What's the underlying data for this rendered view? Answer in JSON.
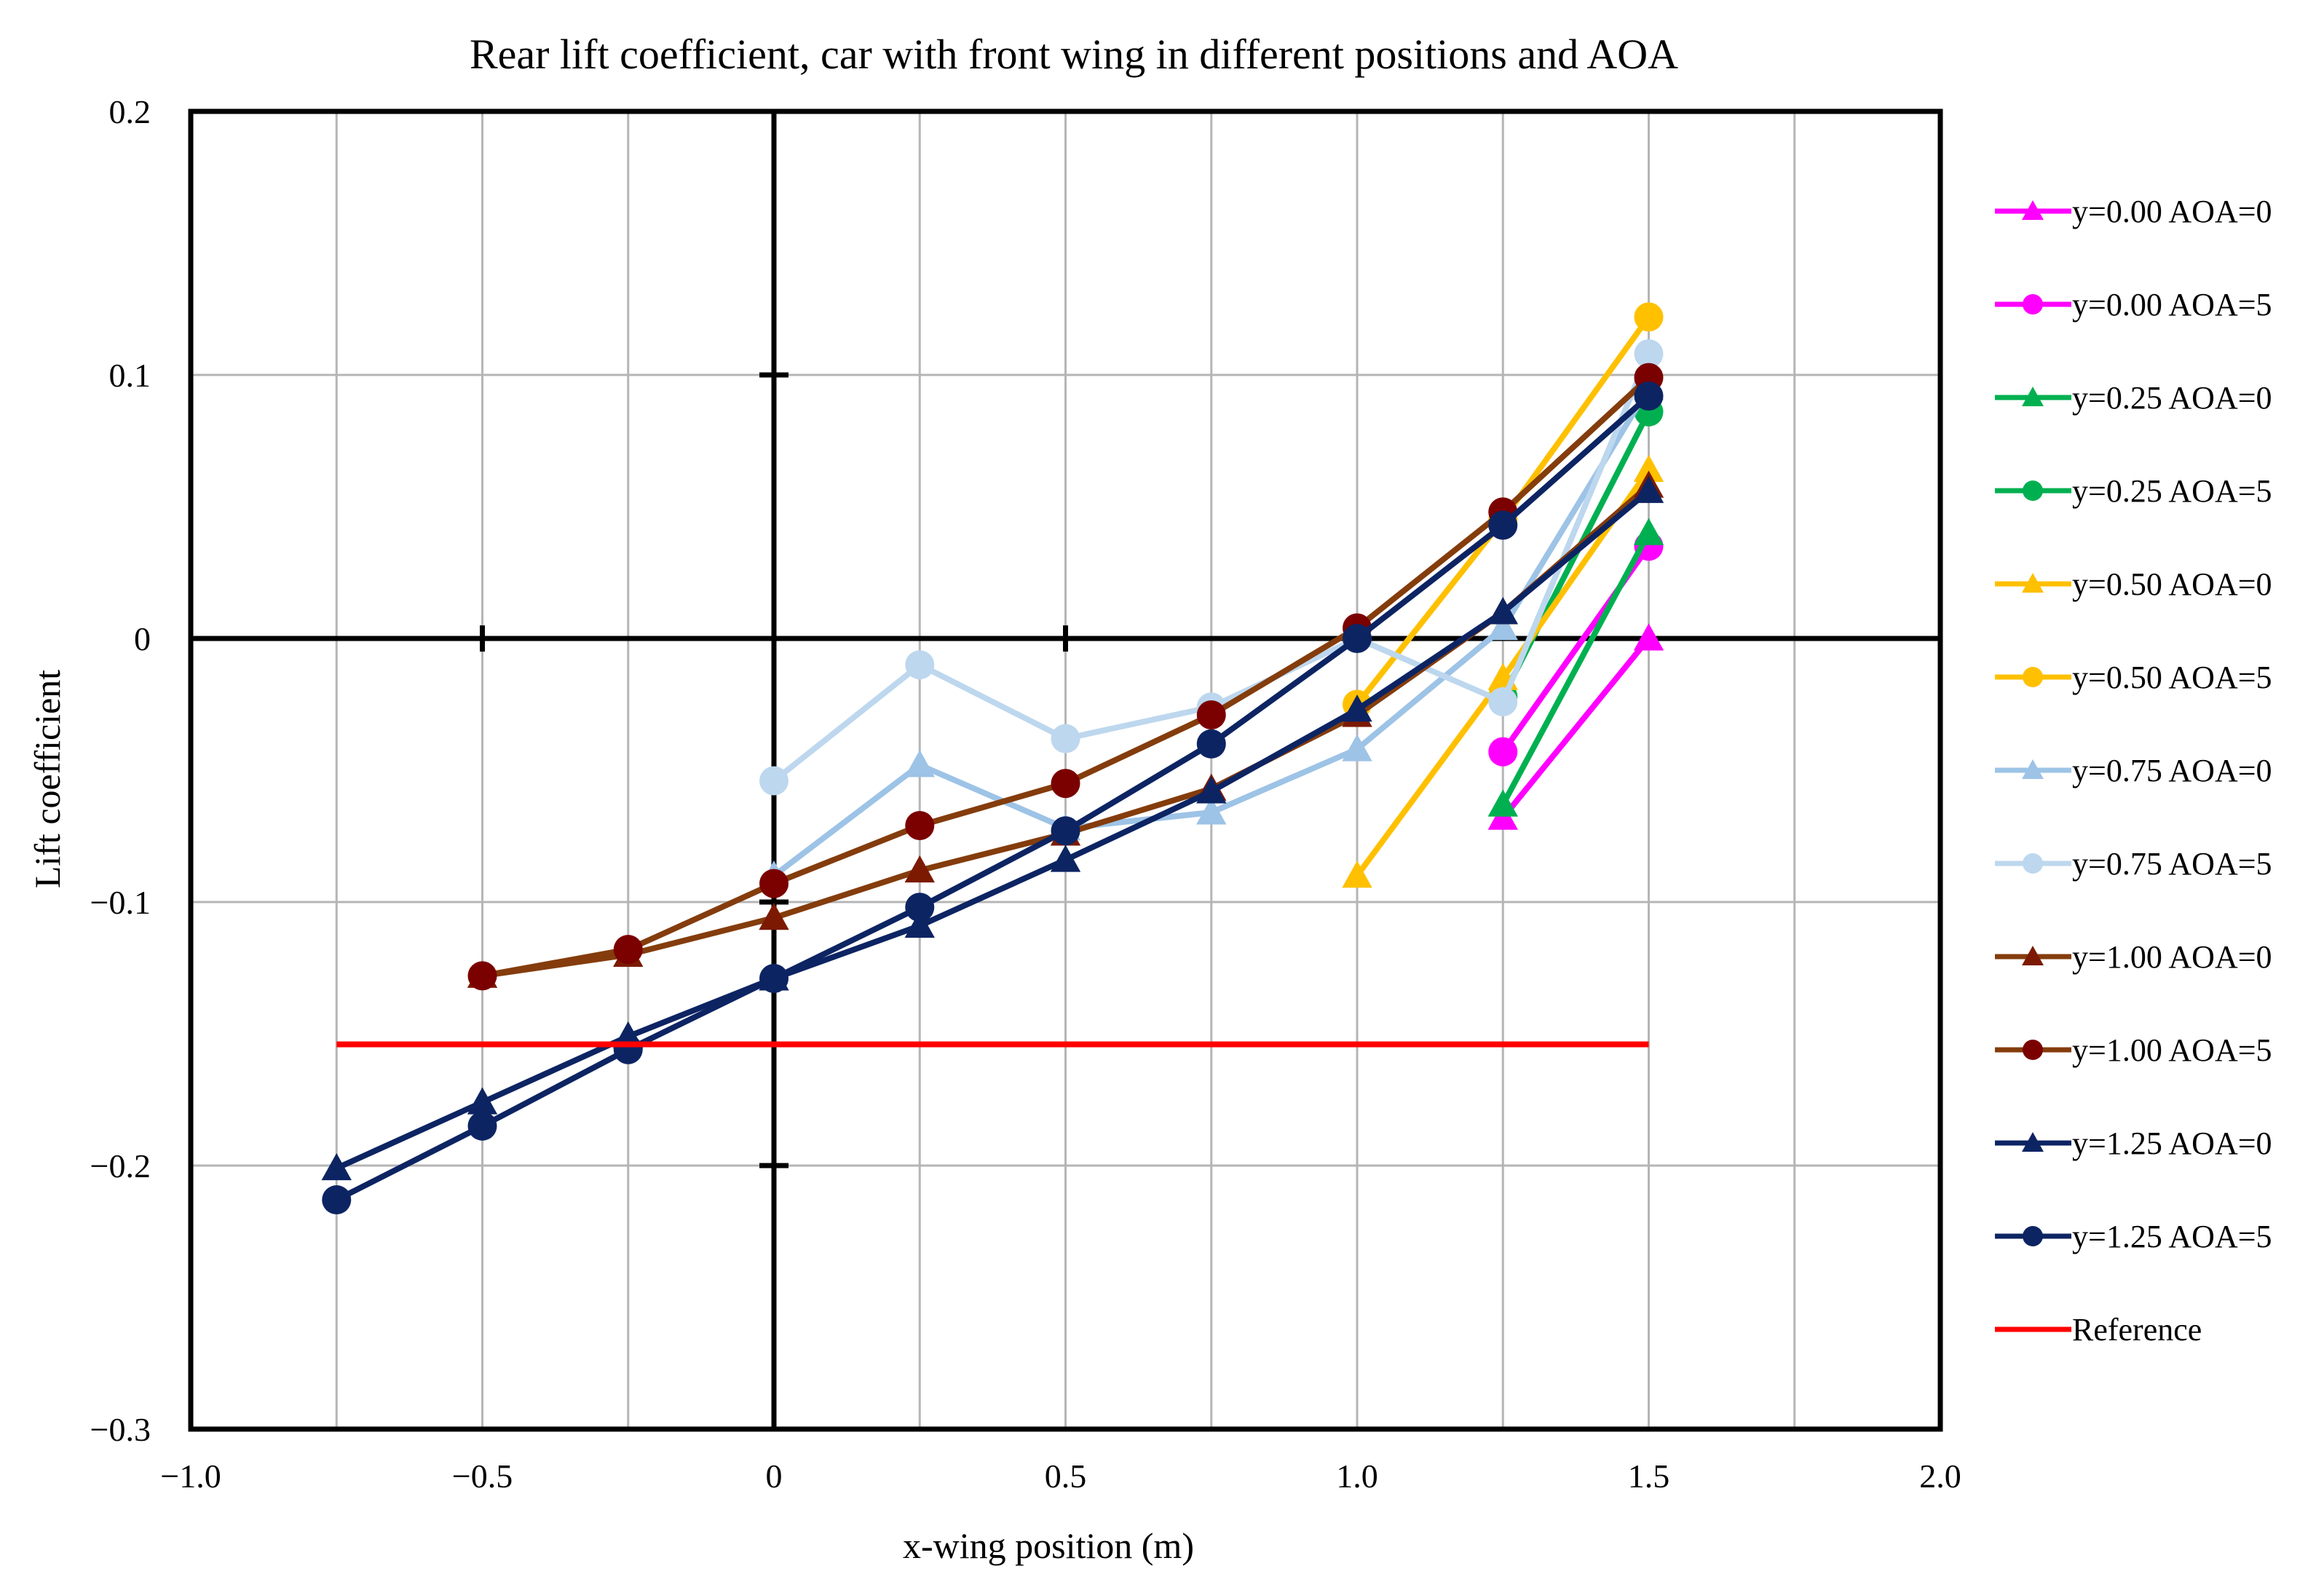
{
  "chart_data": {
    "type": "line",
    "title": "Rear lift coefficient, car with front wing in different positions and AOA",
    "xlabel": "x-wing position (m)",
    "ylabel": "Lift coefficient",
    "xlim": [
      -1.0,
      2.0
    ],
    "ylim": [
      -0.3,
      0.2
    ],
    "x_ticks": [
      -1.0,
      -0.5,
      0,
      0.5,
      1.0,
      1.5,
      2.0
    ],
    "x_tick_labels": [
      "−1.0",
      "−0.5",
      "0",
      "0.5",
      "1.0",
      "1.5",
      "2.0"
    ],
    "y_ticks": [
      0.2,
      0.1,
      0,
      -0.1,
      -0.2,
      -0.3
    ],
    "y_tick_labels": [
      "0.2",
      "0.1",
      "0",
      "−0.1",
      "−0.2",
      "−0.3"
    ],
    "grid": true,
    "legend_position": "right",
    "series": [
      {
        "name": "y=0.00 AOA=0",
        "color": "#ff00ff",
        "marker": "triangle",
        "points": [
          [
            1.25,
            -0.068
          ],
          [
            1.5,
            0.0
          ]
        ]
      },
      {
        "name": "y=0.00 AOA=5",
        "color": "#ff00ff",
        "marker": "circle",
        "points": [
          [
            1.25,
            -0.043
          ],
          [
            1.5,
            0.035
          ]
        ]
      },
      {
        "name": "y=0.25 AOA=0",
        "color": "#00b050",
        "marker": "triangle",
        "points": [
          [
            1.25,
            -0.063
          ],
          [
            1.5,
            0.04
          ]
        ]
      },
      {
        "name": "y=0.25 AOA=5",
        "color": "#00b050",
        "marker": "circle",
        "points": [
          [
            1.25,
            -0.022
          ],
          [
            1.5,
            0.086
          ]
        ]
      },
      {
        "name": "y=0.50 AOA=0",
        "color": "#ffc000",
        "marker": "triangle",
        "points": [
          [
            1.0,
            -0.09
          ],
          [
            1.25,
            -0.015
          ],
          [
            1.5,
            0.064
          ]
        ]
      },
      {
        "name": "y=0.50 AOA=5",
        "color": "#ffc000",
        "marker": "circle",
        "points": [
          [
            1.0,
            -0.025
          ],
          [
            1.25,
            0.045
          ],
          [
            1.5,
            0.122
          ]
        ]
      },
      {
        "name": "y=0.75 AOA=0",
        "color": "#9dc3e6",
        "marker": "triangle",
        "points": [
          [
            0.0,
            -0.09
          ],
          [
            0.25,
            -0.048
          ],
          [
            0.5,
            -0.072
          ],
          [
            0.75,
            -0.066
          ],
          [
            1.0,
            -0.042
          ],
          [
            1.25,
            0.004
          ],
          [
            1.5,
            0.095
          ]
        ]
      },
      {
        "name": "y=0.75 AOA=5",
        "color": "#bdd7ee",
        "marker": "circle",
        "points": [
          [
            0.0,
            -0.054
          ],
          [
            0.25,
            -0.01
          ],
          [
            0.5,
            -0.038
          ],
          [
            0.75,
            -0.026
          ],
          [
            1.0,
            0.0
          ],
          [
            1.25,
            -0.024
          ],
          [
            1.5,
            0.108
          ]
        ]
      },
      {
        "name": "y=1.00 AOA=0",
        "color": "#7b1a00",
        "line_color": "#843c0c",
        "marker": "triangle",
        "points": [
          [
            -0.5,
            -0.128
          ],
          [
            -0.25,
            -0.12
          ],
          [
            0.0,
            -0.106
          ],
          [
            0.25,
            -0.088
          ],
          [
            0.5,
            -0.074
          ],
          [
            0.75,
            -0.057
          ],
          [
            1.0,
            -0.029
          ],
          [
            1.25,
            0.01
          ],
          [
            1.5,
            0.058
          ]
        ]
      },
      {
        "name": "y=1.00 AOA=5",
        "color": "#7b0000",
        "line_color": "#843c0c",
        "marker": "circle",
        "points": [
          [
            -0.5,
            -0.128
          ],
          [
            -0.25,
            -0.118
          ],
          [
            0.0,
            -0.093
          ],
          [
            0.25,
            -0.071
          ],
          [
            0.5,
            -0.055
          ],
          [
            0.75,
            -0.029
          ],
          [
            1.0,
            0.004
          ],
          [
            1.25,
            0.048
          ],
          [
            1.5,
            0.099
          ]
        ]
      },
      {
        "name": "y=1.25 AOA=0",
        "color": "#0d2463",
        "marker": "triangle",
        "points": [
          [
            -0.75,
            -0.201
          ],
          [
            -0.5,
            -0.176
          ],
          [
            -0.25,
            -0.151
          ],
          [
            0.0,
            -0.129
          ],
          [
            0.25,
            -0.109
          ],
          [
            0.5,
            -0.084
          ],
          [
            0.75,
            -0.058
          ],
          [
            1.0,
            -0.027
          ],
          [
            1.25,
            0.01
          ],
          [
            1.5,
            0.056
          ]
        ]
      },
      {
        "name": "y=1.25 AOA=5",
        "color": "#0d2463",
        "marker": "circle",
        "points": [
          [
            -0.75,
            -0.213
          ],
          [
            -0.5,
            -0.185
          ],
          [
            -0.25,
            -0.156
          ],
          [
            0.0,
            -0.129
          ],
          [
            0.25,
            -0.102
          ],
          [
            0.5,
            -0.073
          ],
          [
            0.75,
            -0.04
          ],
          [
            1.0,
            0.0
          ],
          [
            1.25,
            0.043
          ],
          [
            1.5,
            0.092
          ]
        ]
      },
      {
        "name": "Reference",
        "color": "#ff0000",
        "marker": "none",
        "points": [
          [
            -0.75,
            -0.154
          ],
          [
            1.5,
            -0.154
          ]
        ]
      }
    ]
  }
}
